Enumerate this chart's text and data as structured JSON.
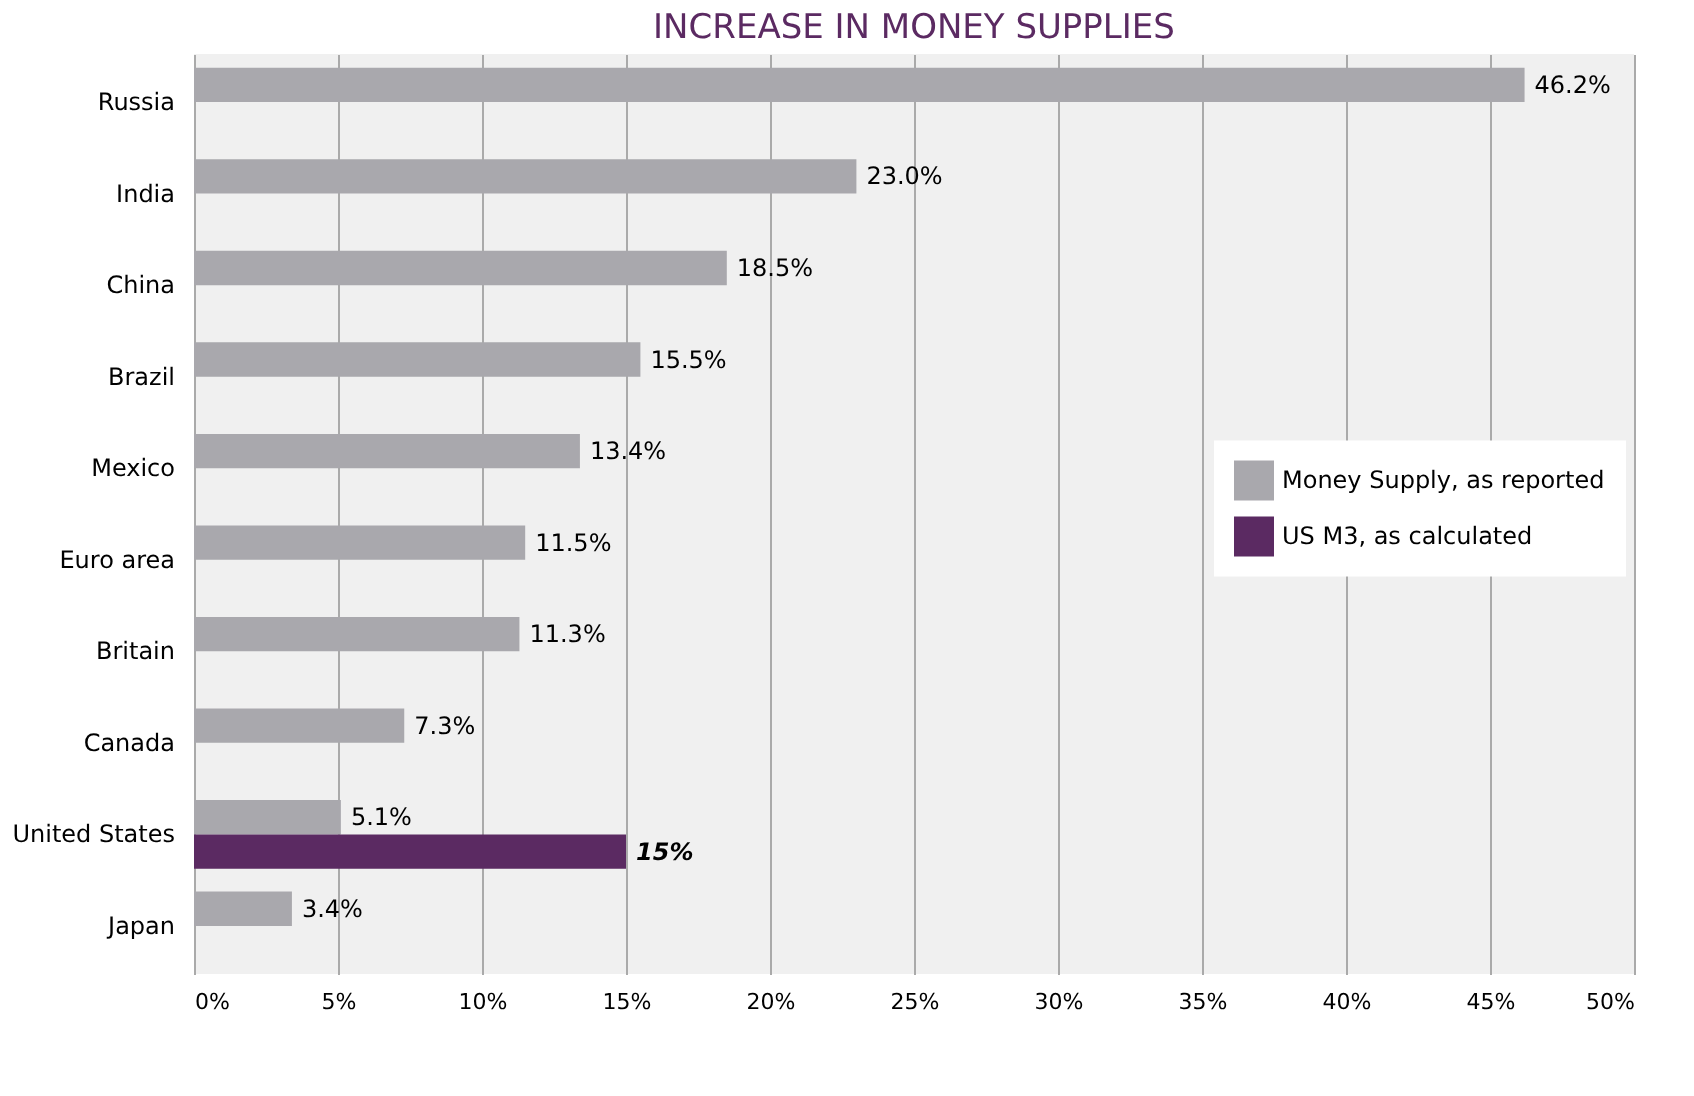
{
  "chart_data": {
    "type": "bar",
    "orientation": "horizontal",
    "title": "INCREASE IN MONEY SUPPLIES",
    "categories": [
      "Russia",
      "India",
      "China",
      "Brazil",
      "Mexico",
      "Euro area",
      "Britain",
      "Canada",
      "United States",
      "Japan"
    ],
    "series": [
      {
        "name": "Money Supply, as reported",
        "color": "#a9a8ad",
        "values": [
          46.2,
          23.0,
          18.5,
          15.5,
          13.4,
          11.5,
          11.3,
          7.3,
          5.1,
          3.4
        ],
        "value_labels": [
          "46.2%",
          "23.0%",
          "18.5%",
          "15.5%",
          "13.4%",
          "11.5%",
          "11.3%",
          "7.3%",
          "5.1%",
          "3.4%"
        ]
      },
      {
        "name": "US M3, as calculated",
        "color": "#5b2a62",
        "values": [
          null,
          null,
          null,
          null,
          null,
          null,
          null,
          null,
          15,
          null
        ],
        "value_labels": [
          null,
          null,
          null,
          null,
          null,
          null,
          null,
          null,
          "15%",
          null
        ]
      }
    ],
    "xlim": [
      0,
      50
    ],
    "xticks": [
      {
        "value": 0,
        "label": "0%"
      },
      {
        "value": 5,
        "label": "5%"
      },
      {
        "value": 10,
        "label": "10%"
      },
      {
        "value": 15,
        "label": "15%"
      },
      {
        "value": 20,
        "label": "20%"
      },
      {
        "value": 25,
        "label": "25%"
      },
      {
        "value": 30,
        "label": "30%"
      },
      {
        "value": 35,
        "label": "35%"
      },
      {
        "value": 40,
        "label": "40%"
      },
      {
        "value": 45,
        "label": "45%"
      },
      {
        "value": 50,
        "label": "50%"
      }
    ],
    "grid": "x",
    "legend": "right"
  }
}
